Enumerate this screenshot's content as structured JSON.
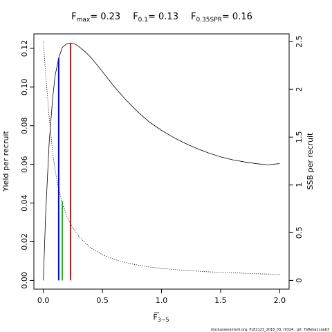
{
  "chart_data": {
    "type": "line",
    "title": {
      "fmax": {
        "label": "F",
        "sub": "max",
        "value": "= 0.23"
      },
      "f01": {
        "label": "F",
        "sub": "0.1",
        "value": "= 0.13"
      },
      "f035spr": {
        "label": "F",
        "sub": "0.35SPR",
        "value": "= 0.16"
      }
    },
    "xlabel": {
      "label": "F",
      "sub": "3−5"
    },
    "ylabel_left": "Yield per recruit",
    "ylabel_right": "SSB per recruit",
    "xlim": [
      -0.08,
      2.08
    ],
    "ylim_left": [
      -0.0045,
      0.1275
    ],
    "ylim_right": [
      -0.091,
      2.58
    ],
    "x_ticks": [
      0,
      0.5,
      1,
      1.5,
      2
    ],
    "x_tick_labels": [
      "0.0",
      "0.5",
      "1.0",
      "1.5",
      "2.0"
    ],
    "y_left_ticks": [
      0,
      0.02,
      0.04,
      0.06,
      0.08,
      0.1,
      0.12
    ],
    "y_left_tick_labels": [
      "0.00",
      "0.02",
      "0.04",
      "0.06",
      "0.08",
      "0.10",
      "0.12"
    ],
    "y_right_ticks": [
      0,
      0.5,
      1,
      1.5,
      2,
      2.5
    ],
    "y_right_tick_labels": [
      "0",
      "0.5",
      "1",
      "1.5",
      "2",
      "2.5"
    ],
    "series": [
      {
        "name": "Yield per recruit",
        "axis": "left",
        "style": "solid",
        "color": "#000000",
        "x": [
          0,
          0.02,
          0.05,
          0.08,
          0.1,
          0.13,
          0.16,
          0.2,
          0.23,
          0.27,
          0.3,
          0.35,
          0.4,
          0.5,
          0.6,
          0.7,
          0.8,
          0.9,
          1.0,
          1.1,
          1.2,
          1.3,
          1.4,
          1.5,
          1.6,
          1.7,
          1.8,
          1.9,
          2.0
        ],
        "y": [
          0,
          0.035,
          0.072,
          0.095,
          0.106,
          0.115,
          0.1205,
          0.1225,
          0.1228,
          0.1222,
          0.121,
          0.1185,
          0.1155,
          0.108,
          0.1002,
          0.0933,
          0.0871,
          0.0818,
          0.0776,
          0.074,
          0.0709,
          0.0682,
          0.0659,
          0.0639,
          0.0624,
          0.0613,
          0.0604,
          0.0598,
          0.0604
        ]
      },
      {
        "name": "SSB per recruit",
        "axis": "right",
        "style": "dotted",
        "color": "#000000",
        "x": [
          0,
          0.02,
          0.05,
          0.08,
          0.1,
          0.13,
          0.16,
          0.2,
          0.25,
          0.3,
          0.4,
          0.5,
          0.6,
          0.7,
          0.8,
          0.9,
          1.0,
          1.2,
          1.4,
          1.6,
          1.8,
          2.0
        ],
        "y": [
          2.5,
          2.15,
          1.7,
          1.33,
          1.15,
          0.96,
          0.81,
          0.67,
          0.55,
          0.46,
          0.34,
          0.27,
          0.22,
          0.185,
          0.16,
          0.14,
          0.125,
          0.105,
          0.09,
          0.08,
          0.07,
          0.063
        ]
      }
    ],
    "reference_lines": [
      {
        "name": "F0.1",
        "x": 0.13,
        "y_top": 0.115,
        "color": "#0000ff",
        "axis": "left"
      },
      {
        "name": "F0.35SPR",
        "x": 0.16,
        "y_top": 0.041,
        "color": "#00cc00",
        "axis": "left"
      },
      {
        "name": "Fmax",
        "x": 0.23,
        "y_top": 0.1228,
        "color": "#ff0000",
        "axis": "left"
      }
    ],
    "grid": false,
    "legend": "none"
  },
  "footer": "stockassessment.org, PLE2123_2018_03, r9324 , git: 7b8eba1caeb3"
}
